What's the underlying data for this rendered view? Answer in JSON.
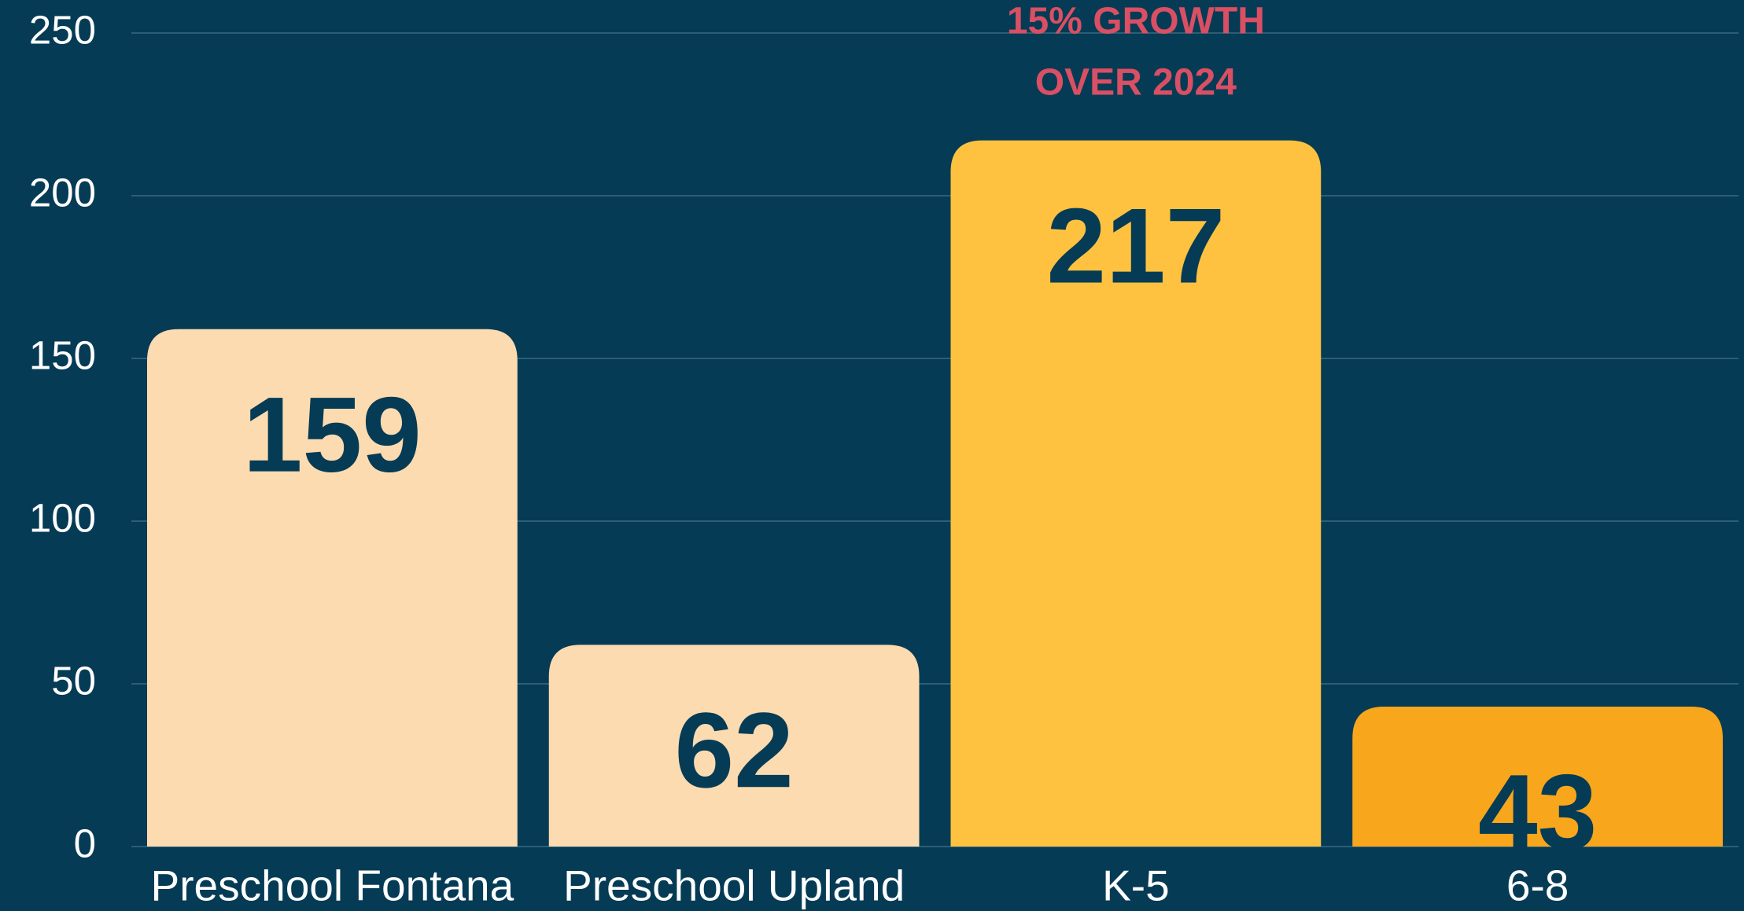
{
  "chart_data": {
    "type": "bar",
    "categories": [
      "Preschool Fontana",
      "Preschool Upland",
      "K-5",
      "6-8"
    ],
    "values": [
      159,
      62,
      217,
      43
    ],
    "colors": [
      "#fcdbb0",
      "#fcdbb0",
      "#fec240",
      "#f8a61b"
    ],
    "annotation": [
      "15% GROWTH",
      "OVER 2024"
    ],
    "ylim": [
      0,
      250
    ],
    "yticks": [
      0,
      50,
      100,
      150,
      200,
      250
    ],
    "grid": true
  }
}
